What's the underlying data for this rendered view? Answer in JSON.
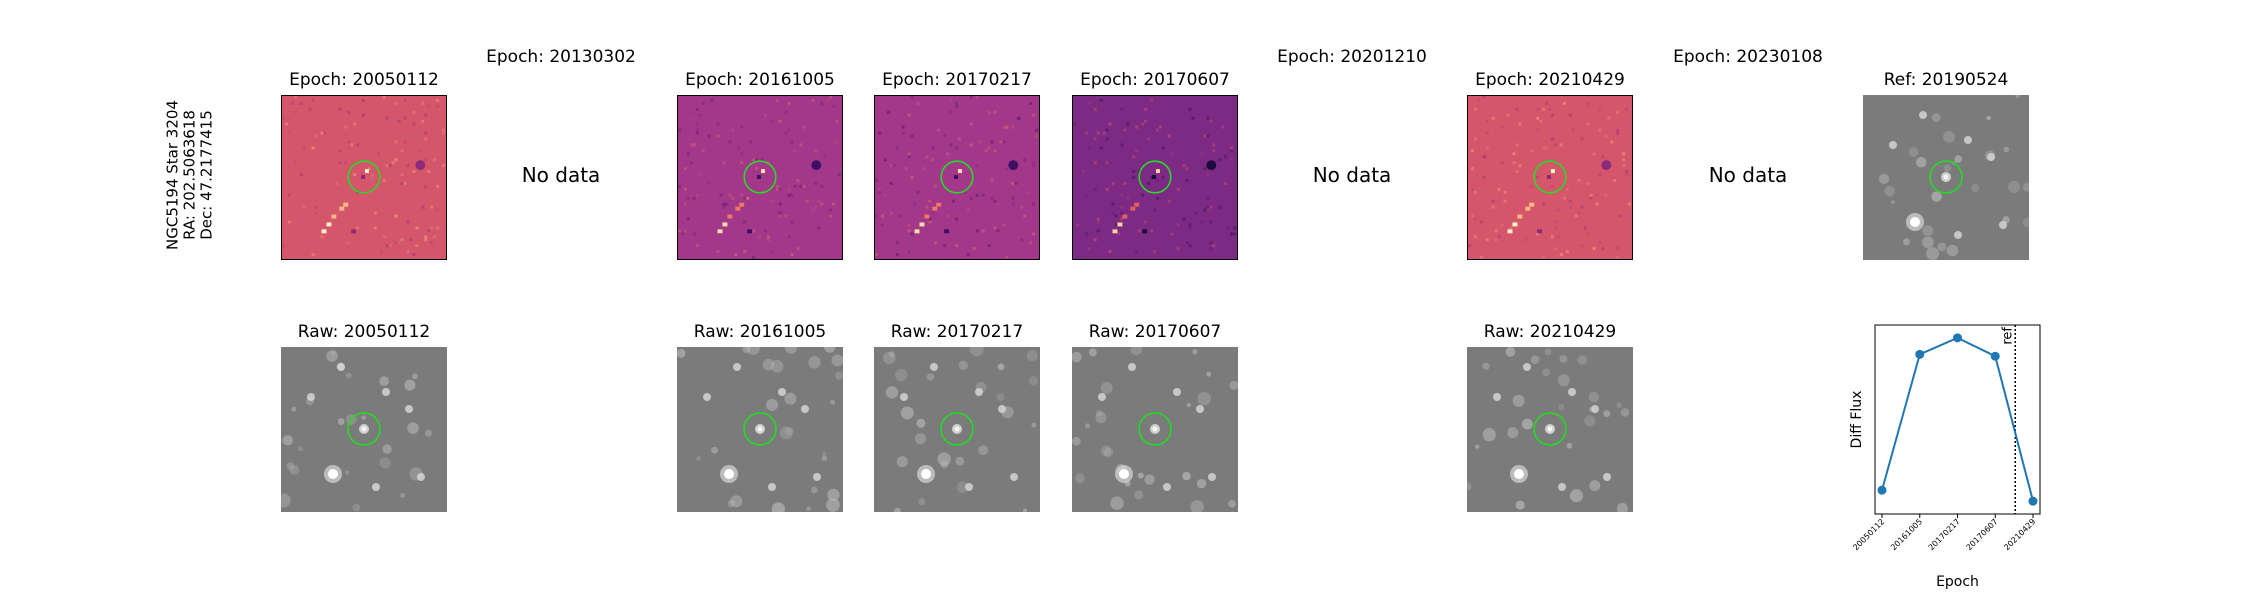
{
  "target": {
    "line1": "NGC5194 Star 3204",
    "line2": "RA: 202.5063618",
    "line3": "Dec: 47.2177415"
  },
  "diff_row": [
    {
      "title": "Epoch: 20050112",
      "has_data": true,
      "style": "bright"
    },
    {
      "title": "Epoch: 20130302",
      "has_data": false,
      "no_data": "No data"
    },
    {
      "title": "Epoch: 20161005",
      "has_data": true,
      "style": "purple"
    },
    {
      "title": "Epoch: 20170217",
      "has_data": true,
      "style": "purple"
    },
    {
      "title": "Epoch: 20170607",
      "has_data": true,
      "style": "deep"
    },
    {
      "title": "Epoch: 20201210",
      "has_data": false,
      "no_data": "No data"
    },
    {
      "title": "Epoch: 20210429",
      "has_data": true,
      "style": "bright"
    },
    {
      "title": "Epoch: 20230108",
      "has_data": false,
      "no_data": "No data"
    },
    {
      "title": "Ref: 20190524",
      "has_data": true,
      "style": "gray"
    }
  ],
  "raw_row": [
    {
      "title": "Raw: 20050112"
    },
    {
      "title": "Raw: 20161005"
    },
    {
      "title": "Raw: 20170217"
    },
    {
      "title": "Raw: 20170607"
    },
    {
      "title": "Raw: 20210429"
    }
  ],
  "marker_color": "#22dd22",
  "chart_data": {
    "type": "line",
    "ylabel": "Diff Flux",
    "xlabel": "Epoch",
    "x": [
      "20050112",
      "20161005",
      "20170217",
      "20170607",
      "20210429"
    ],
    "y": [
      0.13,
      0.87,
      0.96,
      0.86,
      0.07
    ],
    "ylim": [
      0.0,
      1.03
    ],
    "ref_label": "ref",
    "ref_position_between": [
      3,
      4
    ],
    "ref_fraction": 0.53,
    "line_color": "#1f77b4",
    "grid": false
  }
}
